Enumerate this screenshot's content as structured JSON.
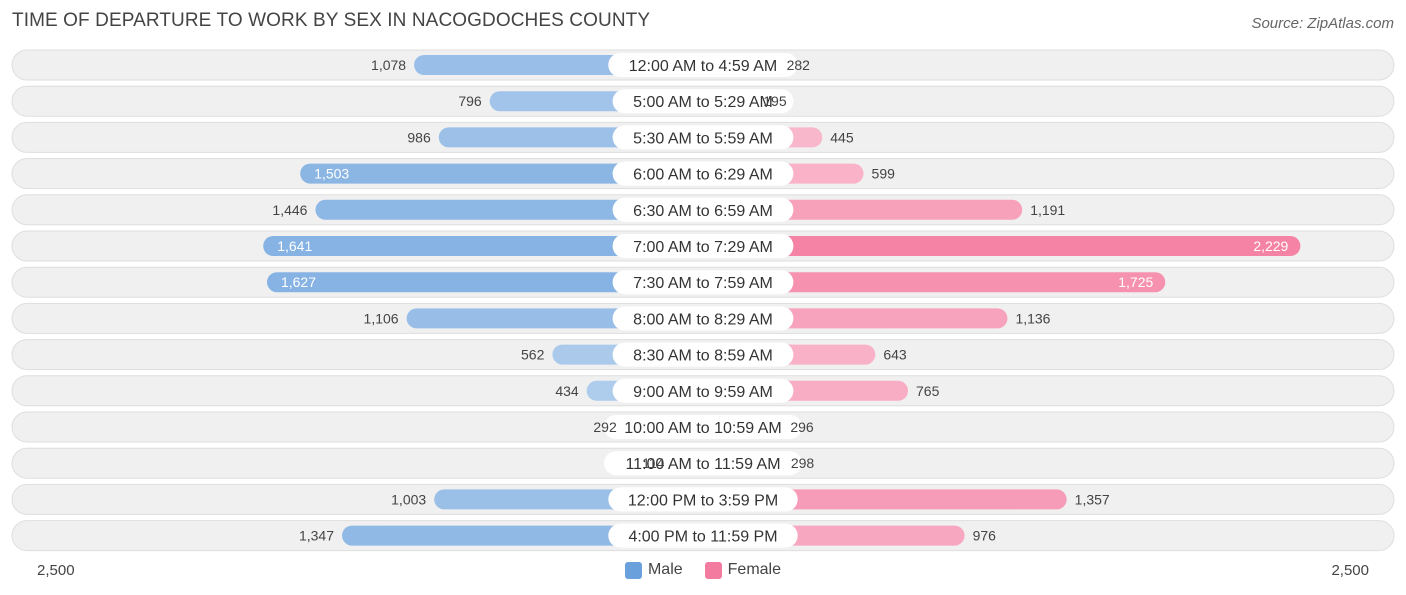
{
  "title": "TIME OF DEPARTURE TO WORK BY SEX IN NACOGDOCHES COUNTY",
  "source": "Source: ZipAtlas.com",
  "colors": {
    "male": "#6aa1dd",
    "female": "#f47ba0",
    "row_bg": "#efefef",
    "label_bg": "#ffffff"
  },
  "chart_data": {
    "type": "bar",
    "orientation": "horizontal-diverging",
    "title": "TIME OF DEPARTURE TO WORK BY SEX IN NACOGDOCHES COUNTY",
    "categories": [
      "12:00 AM to 4:59 AM",
      "5:00 AM to 5:29 AM",
      "5:30 AM to 5:59 AM",
      "6:00 AM to 6:29 AM",
      "6:30 AM to 6:59 AM",
      "7:00 AM to 7:29 AM",
      "7:30 AM to 7:59 AM",
      "8:00 AM to 8:29 AM",
      "8:30 AM to 8:59 AM",
      "9:00 AM to 9:59 AM",
      "10:00 AM to 10:59 AM",
      "11:00 AM to 11:59 AM",
      "12:00 PM to 3:59 PM",
      "4:00 PM to 11:59 PM"
    ],
    "series": [
      {
        "name": "Male",
        "values": [
          1078,
          796,
          986,
          1503,
          1446,
          1641,
          1627,
          1106,
          562,
          434,
          292,
          114,
          1003,
          1347
        ]
      },
      {
        "name": "Female",
        "values": [
          282,
          195,
          445,
          599,
          1191,
          2229,
          1725,
          1136,
          643,
          765,
          296,
          298,
          1357,
          976
        ]
      }
    ],
    "value_labels": {
      "male": [
        "1,078",
        "796",
        "986",
        "1,503",
        "1,446",
        "1,641",
        "1,627",
        "1,106",
        "562",
        "434",
        "292",
        "114",
        "1,003",
        "1,347"
      ],
      "female": [
        "282",
        "195",
        "445",
        "599",
        "1,191",
        "2,229",
        "1,725",
        "1,136",
        "643",
        "765",
        "296",
        "298",
        "1,357",
        "976"
      ]
    },
    "xlim": [
      0,
      2500
    ],
    "axis_min_label": "2,500",
    "axis_max_label": "2,500",
    "legend": [
      "Male",
      "Female"
    ],
    "legend_position": "bottom-center"
  }
}
